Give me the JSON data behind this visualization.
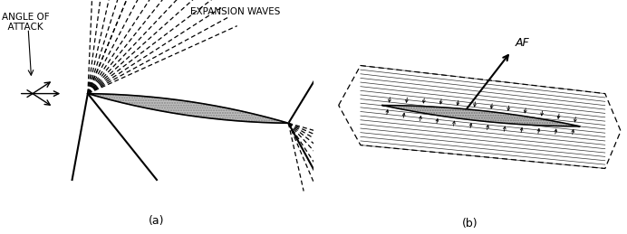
{
  "fig_width": 6.92,
  "fig_height": 2.59,
  "dpi": 100,
  "bg_color": "#ffffff",
  "label_a": "(a)",
  "label_b": "(b)",
  "text_angle_of_attack": "ANGLE OF\n  ATTACK",
  "text_expansion_waves": "EXPANSION WAVES",
  "text_AF": "AF"
}
